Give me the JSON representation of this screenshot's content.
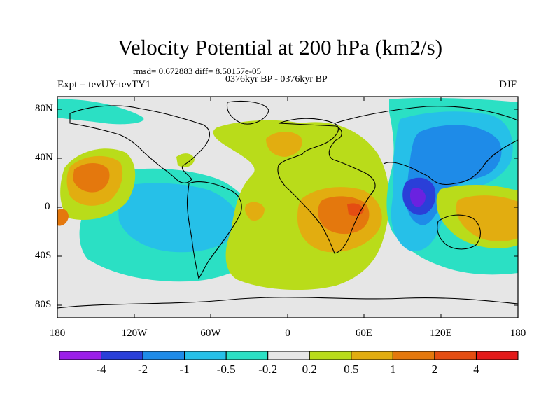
{
  "title": "Velocity Potential at 200 hPa (km2/s)",
  "stats_text": "rmsd= 0.672883  diff= 8.50157e-05",
  "period_text": "0376kyr BP - 0376kyr BP",
  "experiment_text": "Expt = tevUY-tevTY1",
  "season": "DJF",
  "lat_labels": [
    "80N",
    "40N",
    "0",
    "40S",
    "80S"
  ],
  "lon_labels": [
    "180",
    "120W",
    "60W",
    "0",
    "60E",
    "120E",
    "180"
  ],
  "colorbar": {
    "labels": [
      "-4",
      "-2",
      "-1",
      "-0.5",
      "-0.2",
      "0.2",
      "0.5",
      "1",
      "2",
      "4"
    ],
    "colors": [
      "#9b1ee8",
      "#2a3fd8",
      "#1e8be8",
      "#26c0e8",
      "#2be0c4",
      "#e6e6e6",
      "#b9dc1a",
      "#e2ad10",
      "#e4780d",
      "#e44d12",
      "#e31a1a"
    ]
  }
}
